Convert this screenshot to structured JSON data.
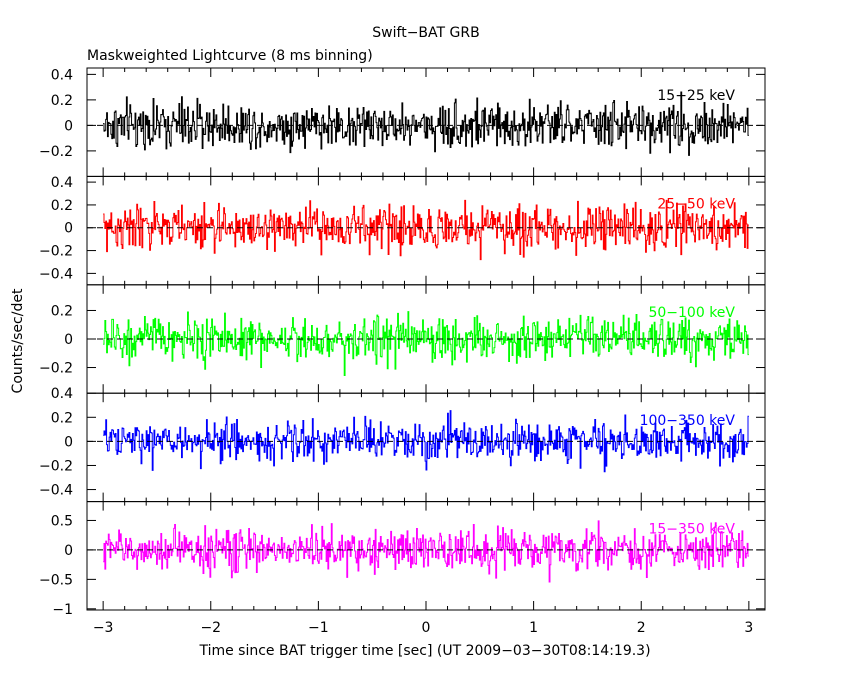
{
  "figure": {
    "title": "Swift−BAT GRB",
    "subtitle": "Maskweighted Lightcurve (8 ms binning)",
    "xlabel": "Time since BAT trigger time [sec] (UT 2009−03−30T08:14:19.3)",
    "ylabel": "Counts/sec/det"
  },
  "chart_data": {
    "type": "line",
    "title": "Swift−BAT GRB",
    "subtitle": "Maskweighted Lightcurve (8 ms binning)",
    "xlabel": "Time since BAT trigger time [sec] (UT 2009−03−30T08:14:19.3)",
    "ylabel": "Counts/sec/det",
    "xlim": [
      -3.15,
      3.15
    ],
    "data_range": [
      -3.0,
      3.0
    ],
    "bin_width": 0.008,
    "x_ticks": [
      -3,
      -2,
      -1,
      0,
      1,
      2,
      3
    ],
    "x_tick_labels": [
      "−3",
      "−2",
      "−1",
      "0",
      "1",
      "2",
      "3"
    ],
    "zero_line": "dashed",
    "panels": [
      {
        "name": "15−25 keV",
        "color": "#000000",
        "ylim": [
          -0.4,
          0.45
        ],
        "amplitude": 0.14,
        "y_ticks": [
          -0.2,
          0,
          0.2,
          0.4
        ],
        "y_tick_labels": [
          "−0.2",
          "0",
          "0.2",
          "0.4"
        ]
      },
      {
        "name": "25−50 keV",
        "color": "#ff0000",
        "ylim": [
          -0.5,
          0.45
        ],
        "amplitude": 0.15,
        "y_ticks": [
          -0.4,
          -0.2,
          0,
          0.2,
          0.4
        ],
        "y_tick_labels": [
          "−0.4",
          "−0.2",
          "0",
          "0.2",
          "0.4"
        ]
      },
      {
        "name": "50−100 keV",
        "color": "#00ff00",
        "ylim": [
          -0.38,
          0.38
        ],
        "amplitude": 0.12,
        "y_ticks": [
          -0.2,
          0,
          0.2
        ],
        "y_tick_labels": [
          "−0.2",
          "0",
          "0.2"
        ]
      },
      {
        "name": "100−350 keV",
        "color": "#0000ff",
        "ylim": [
          -0.5,
          0.4
        ],
        "amplitude": 0.13,
        "y_ticks": [
          -0.4,
          -0.2,
          0,
          0.2,
          0.4
        ],
        "y_tick_labels": [
          "−0.4",
          "−0.2",
          "0",
          "0.2",
          "0.4"
        ]
      },
      {
        "name": "15−350 keV",
        "color": "#ff00ff",
        "ylim": [
          -1.02,
          0.82
        ],
        "amplitude": 0.28,
        "y_ticks": [
          -1,
          -0.5,
          0,
          0.5
        ],
        "y_tick_labels": [
          "−1",
          "−0.5",
          "0",
          "0.5"
        ]
      }
    ]
  }
}
